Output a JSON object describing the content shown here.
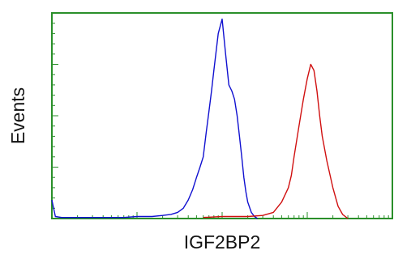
{
  "chart_data": {
    "type": "line",
    "title": "",
    "xlabel": "IGF2BP2",
    "ylabel": "Events",
    "xscale": "log",
    "xlim": [
      1,
      10000
    ],
    "ylim": [
      0,
      100
    ],
    "grid": false,
    "legend": "none",
    "frame_color": "#2a8f2a",
    "series": [
      {
        "color": "#1010d0",
        "x": [
          1,
          1.1,
          1.3,
          2,
          4,
          7,
          10,
          15,
          20,
          25,
          30,
          35,
          40,
          45,
          50,
          55,
          60,
          65,
          70,
          75,
          80,
          90,
          100,
          110,
          120,
          130,
          140,
          150,
          160,
          170,
          180,
          190,
          200,
          220,
          240,
          260
        ],
        "y": [
          9,
          1,
          0.5,
          0.5,
          0.5,
          0.5,
          1,
          1,
          1.5,
          2,
          3,
          5,
          9,
          14,
          20,
          25,
          30,
          42,
          52,
          62,
          72,
          90,
          97,
          80,
          65,
          62,
          58,
          50,
          40,
          30,
          20,
          13,
          8,
          3,
          1,
          0
        ]
      },
      {
        "color": "#d01010",
        "x": [
          60,
          100,
          200,
          300,
          400,
          500,
          600,
          650,
          700,
          800,
          900,
          1000,
          1100,
          1200,
          1300,
          1400,
          1500,
          1700,
          2000,
          2300,
          2600,
          3000
        ],
        "y": [
          0.5,
          1,
          1,
          1.5,
          3,
          8,
          15,
          21,
          30,
          45,
          58,
          68,
          75,
          72,
          62,
          50,
          40,
          28,
          15,
          6,
          2,
          0
        ]
      }
    ]
  }
}
